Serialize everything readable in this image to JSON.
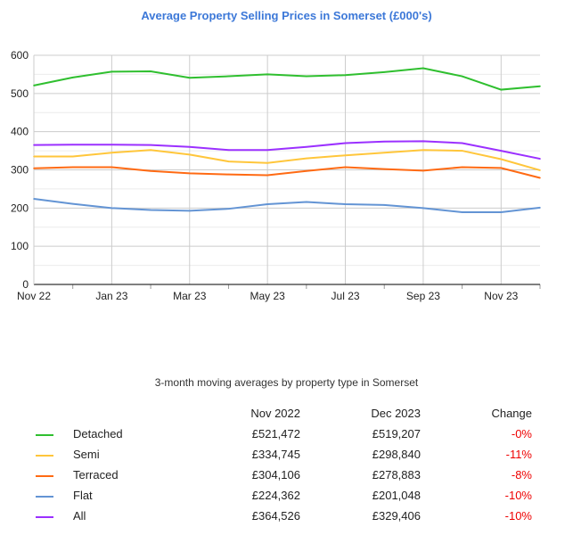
{
  "chart_data": {
    "type": "line",
    "title": "Average Property Selling Prices in Somerset (£000's)",
    "x": [
      "Nov 22",
      "Dec 22",
      "Jan 23",
      "Feb 23",
      "Mar 23",
      "Apr 23",
      "May 23",
      "Jun 23",
      "Jul 23",
      "Aug 23",
      "Sep 23",
      "Oct 23",
      "Nov 23",
      "Dec 23"
    ],
    "xtick_labels": [
      "Nov 22",
      "Jan 23",
      "Mar 23",
      "May 23",
      "Jul 23",
      "Sep 23",
      "Nov 23"
    ],
    "ytick_labels": [
      "0",
      "100",
      "200",
      "300",
      "400",
      "500",
      "600"
    ],
    "ylim": [
      0,
      600
    ],
    "grid": true,
    "series": [
      {
        "name": "Detached",
        "color": "#2fbf2f",
        "values": [
          521,
          542,
          557,
          558,
          541,
          545,
          550,
          545,
          548,
          556,
          566,
          545,
          510,
          519
        ]
      },
      {
        "name": "Semi",
        "color": "#ffc63b",
        "values": [
          335,
          335,
          345,
          352,
          340,
          322,
          318,
          330,
          338,
          345,
          352,
          350,
          328,
          299
        ]
      },
      {
        "name": "Terraced",
        "color": "#ff6a13",
        "values": [
          304,
          307,
          307,
          297,
          291,
          288,
          286,
          297,
          307,
          302,
          298,
          307,
          305,
          279
        ]
      },
      {
        "name": "Flat",
        "color": "#6394d4",
        "values": [
          224,
          211,
          200,
          195,
          193,
          198,
          210,
          216,
          210,
          208,
          200,
          189,
          189,
          201
        ]
      },
      {
        "name": "All",
        "color": "#9b30ff",
        "values": [
          365,
          366,
          366,
          365,
          360,
          352,
          352,
          360,
          370,
          374,
          375,
          370,
          350,
          329
        ]
      }
    ]
  },
  "table": {
    "subtitle": "3-month moving averages by property type in Somerset",
    "headers": [
      "Nov 2022",
      "Dec 2023",
      "Change"
    ],
    "rows": [
      {
        "name": "Detached",
        "start": "£521,472",
        "end": "£519,207",
        "change": "-0%"
      },
      {
        "name": "Semi",
        "start": "£334,745",
        "end": "£298,840",
        "change": "-11%"
      },
      {
        "name": "Terraced",
        "start": "£304,106",
        "end": "£278,883",
        "change": "-8%"
      },
      {
        "name": "Flat",
        "start": "£224,362",
        "end": "£201,048",
        "change": "-10%"
      },
      {
        "name": "All",
        "start": "£364,526",
        "end": "£329,406",
        "change": "-10%"
      }
    ]
  }
}
